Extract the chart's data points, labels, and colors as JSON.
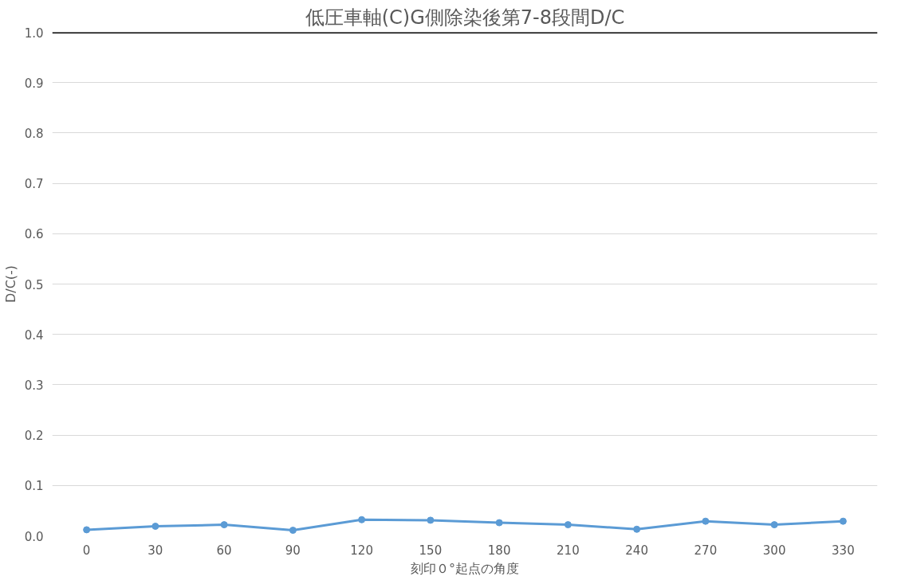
{
  "chart_data": {
    "type": "line",
    "title": "低圧車軸(C)G側除染後第7-8段間D/C",
    "xlabel": "刻印０°起点の角度",
    "ylabel": "D/C(-)",
    "categories": [
      "0",
      "30",
      "60",
      "90",
      "120",
      "150",
      "180",
      "210",
      "240",
      "270",
      "300",
      "330"
    ],
    "series": [
      {
        "color": "#5b9bd5",
        "values": [
          0.012,
          0.019,
          0.022,
          0.011,
          0.032,
          0.031,
          0.026,
          0.022,
          0.013,
          0.029,
          0.022,
          0.029
        ]
      }
    ],
    "ylim": [
      0,
      1.0
    ],
    "yticks": [
      {
        "value": 0,
        "label": "0.0"
      },
      {
        "value": 0.1,
        "label": "0.1"
      },
      {
        "value": 0.2,
        "label": "0.2"
      },
      {
        "value": 0.3,
        "label": "0.3"
      },
      {
        "value": 0.4,
        "label": "0.4"
      },
      {
        "value": 0.5,
        "label": "0.5"
      },
      {
        "value": 0.6,
        "label": "0.6"
      },
      {
        "value": 0.7,
        "label": "0.7"
      },
      {
        "value": 0.8,
        "label": "0.8"
      },
      {
        "value": 0.9,
        "label": "0.9"
      },
      {
        "value": 1.0,
        "label": "1.0"
      }
    ],
    "ref_lines": [
      {
        "axis": "y",
        "value": 1.0,
        "color": "#000000"
      }
    ],
    "grid": "y",
    "marker": "circle",
    "line_style": "solid"
  }
}
